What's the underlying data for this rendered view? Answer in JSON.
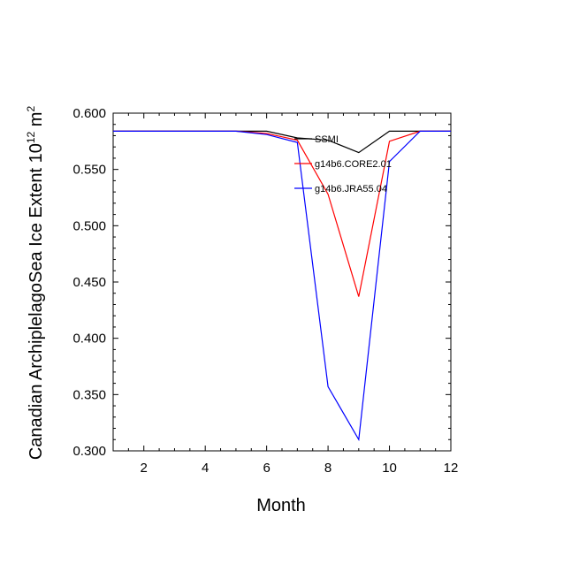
{
  "chart_data": {
    "type": "line",
    "title": "",
    "xlabel": "Month",
    "ylabel": "Canadian ArchiplelagoSea Ice Extent 10",
    "ylabel_sup": "12",
    "ylabel_unit": "m",
    "ylabel_unit_sup": "2",
    "xlim": [
      1,
      12
    ],
    "ylim": [
      0.3,
      0.6
    ],
    "x_ticks": [
      2,
      4,
      6,
      8,
      10,
      12
    ],
    "x_tick_labels": [
      "2",
      "4",
      "6",
      "8",
      "10",
      "12"
    ],
    "y_ticks": [
      0.3,
      0.35,
      0.4,
      0.45,
      0.5,
      0.55,
      0.6
    ],
    "y_tick_labels": [
      "0.300",
      "0.350",
      "0.400",
      "0.450",
      "0.500",
      "0.550",
      "0.600"
    ],
    "grid": false,
    "legend_position": "top-right",
    "x": [
      1,
      2,
      3,
      4,
      5,
      6,
      7,
      8,
      9,
      10,
      11,
      12
    ],
    "series": [
      {
        "name": "SSMI",
        "color": "#000000",
        "values": [
          0.584,
          0.584,
          0.584,
          0.584,
          0.584,
          0.584,
          0.578,
          0.576,
          0.565,
          0.584,
          0.584,
          0.584
        ]
      },
      {
        "name": "g14b6.CORE2.01",
        "color": "#ff0000",
        "values": [
          0.584,
          0.584,
          0.584,
          0.584,
          0.584,
          0.582,
          0.576,
          0.528,
          0.437,
          0.575,
          0.584,
          0.584
        ]
      },
      {
        "name": "g14b6.JRA55.04",
        "color": "#0000ff",
        "values": [
          0.584,
          0.584,
          0.584,
          0.584,
          0.584,
          0.581,
          0.574,
          0.357,
          0.31,
          0.557,
          0.584,
          0.584
        ]
      }
    ]
  }
}
